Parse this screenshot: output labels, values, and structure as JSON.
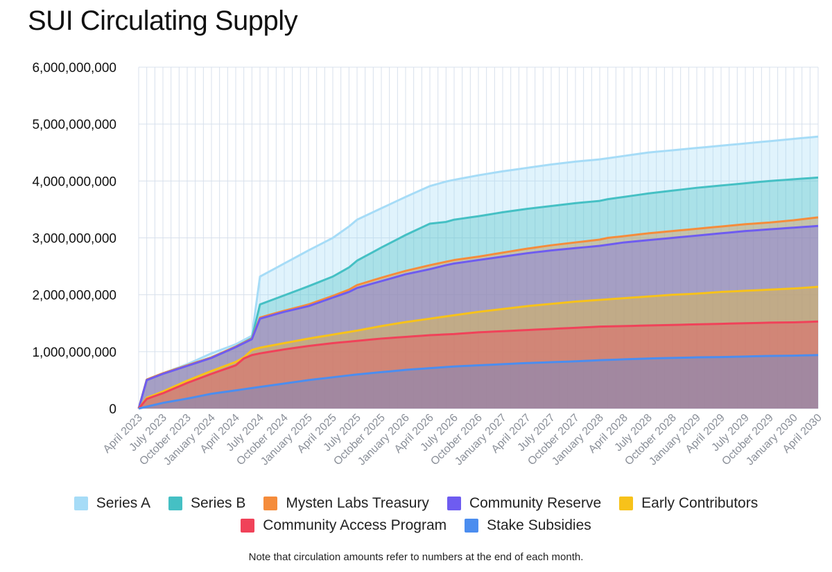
{
  "title": "SUI Circulating Supply",
  "note": "Note that circulation amounts refer to numbers at the end of each month.",
  "colors": {
    "Series A": "#a6dcf7",
    "Series B": "#45c0c4",
    "Mysten Labs Treasury": "#f58c3b",
    "Community Reserve": "#6e5cf0",
    "Early Contributors": "#f7c21a",
    "Community Access Program": "#f04259",
    "Stake Subsidies": "#4b8def"
  },
  "legend_rows": [
    [
      "Series A",
      "Series B",
      "Mysten Labs Treasury",
      "Community Reserve",
      "Early Contributors"
    ],
    [
      "Community Access Program",
      "Stake Subsidies"
    ]
  ],
  "chart_data": {
    "type": "area",
    "stacked": true,
    "title": "SUI Circulating Supply",
    "ylim": [
      0,
      6000000000
    ],
    "yticks": [
      0,
      1000000000,
      2000000000,
      3000000000,
      4000000000,
      5000000000,
      6000000000
    ],
    "ytick_labels": [
      "0",
      "1,000,000,000",
      "2,000,000,000",
      "3,000,000,000",
      "4,000,000,000",
      "5,000,000,000",
      "6,000,000,000"
    ],
    "grid": true,
    "legend_position": "bottom",
    "x_months": [
      "2023-04",
      "2023-05",
      "2023-06",
      "2023-07",
      "2023-08",
      "2023-09",
      "2023-10",
      "2023-11",
      "2023-12",
      "2024-01",
      "2024-02",
      "2024-03",
      "2024-04",
      "2024-05",
      "2024-06",
      "2024-07",
      "2024-08",
      "2024-09",
      "2024-10",
      "2024-11",
      "2024-12",
      "2025-01",
      "2025-02",
      "2025-03",
      "2025-04",
      "2025-05",
      "2025-06",
      "2025-07",
      "2025-08",
      "2025-09",
      "2025-10",
      "2025-11",
      "2025-12",
      "2026-01",
      "2026-02",
      "2026-03",
      "2026-04",
      "2026-05",
      "2026-06",
      "2026-07",
      "2026-08",
      "2026-09",
      "2026-10",
      "2026-11",
      "2026-12",
      "2027-01",
      "2027-02",
      "2027-03",
      "2027-04",
      "2027-05",
      "2027-06",
      "2027-07",
      "2027-08",
      "2027-09",
      "2027-10",
      "2027-11",
      "2027-12",
      "2028-01",
      "2028-02",
      "2028-03",
      "2028-04",
      "2028-05",
      "2028-06",
      "2028-07",
      "2028-08",
      "2028-09",
      "2028-10",
      "2028-11",
      "2028-12",
      "2029-01",
      "2029-02",
      "2029-03",
      "2029-04",
      "2029-05",
      "2029-06",
      "2029-07",
      "2029-08",
      "2029-09",
      "2029-10",
      "2029-11",
      "2029-12",
      "2030-01",
      "2030-02",
      "2030-03",
      "2030-04"
    ],
    "x_tick_labels": [
      "April 2023",
      "July 2023",
      "October 2023",
      "January 2024",
      "April 2024",
      "July 2024",
      "October 2024",
      "January 2025",
      "April 2025",
      "July 2025",
      "October 2025",
      "January 2026",
      "April 2026",
      "July 2026",
      "October 2026",
      "January 2027",
      "April 2027",
      "July 2027",
      "October 2027",
      "January 2028",
      "April 2028",
      "July 2028",
      "October 2028",
      "January 2029",
      "April 2029",
      "July 2029",
      "October 2029",
      "January 2030",
      "April 2030"
    ],
    "cumulative_anchors": {
      "Stake Subsidies": [
        [
          0,
          0
        ],
        [
          3,
          100000000
        ],
        [
          6,
          175000000
        ],
        [
          9,
          260000000
        ],
        [
          12,
          320000000
        ],
        [
          15,
          380000000
        ],
        [
          18,
          440000000
        ],
        [
          21,
          500000000
        ],
        [
          24,
          550000000
        ],
        [
          27,
          600000000
        ],
        [
          30,
          640000000
        ],
        [
          33,
          680000000
        ],
        [
          36,
          710000000
        ],
        [
          39,
          740000000
        ],
        [
          42,
          760000000
        ],
        [
          45,
          780000000
        ],
        [
          48,
          800000000
        ],
        [
          51,
          815000000
        ],
        [
          54,
          830000000
        ],
        [
          57,
          850000000
        ],
        [
          60,
          865000000
        ],
        [
          63,
          880000000
        ],
        [
          66,
          890000000
        ],
        [
          69,
          900000000
        ],
        [
          72,
          905000000
        ],
        [
          75,
          915000000
        ],
        [
          78,
          925000000
        ],
        [
          81,
          930000000
        ],
        [
          84,
          940000000
        ]
      ],
      "Community Access Program": [
        [
          0,
          0
        ],
        [
          1,
          170000000
        ],
        [
          3,
          270000000
        ],
        [
          6,
          450000000
        ],
        [
          9,
          610000000
        ],
        [
          12,
          760000000
        ],
        [
          13,
          880000000
        ],
        [
          14,
          940000000
        ],
        [
          15,
          970000000
        ],
        [
          18,
          1040000000
        ],
        [
          21,
          1100000000
        ],
        [
          24,
          1150000000
        ],
        [
          27,
          1190000000
        ],
        [
          30,
          1230000000
        ],
        [
          33,
          1260000000
        ],
        [
          36,
          1290000000
        ],
        [
          39,
          1310000000
        ],
        [
          42,
          1340000000
        ],
        [
          45,
          1360000000
        ],
        [
          48,
          1380000000
        ],
        [
          51,
          1400000000
        ],
        [
          54,
          1420000000
        ],
        [
          57,
          1440000000
        ],
        [
          60,
          1450000000
        ],
        [
          63,
          1460000000
        ],
        [
          66,
          1470000000
        ],
        [
          69,
          1480000000
        ],
        [
          72,
          1490000000
        ],
        [
          75,
          1500000000
        ],
        [
          78,
          1510000000
        ],
        [
          81,
          1515000000
        ],
        [
          84,
          1530000000
        ]
      ],
      "Early Contributors": [
        [
          0,
          0
        ],
        [
          1,
          190000000
        ],
        [
          3,
          300000000
        ],
        [
          6,
          490000000
        ],
        [
          9,
          660000000
        ],
        [
          12,
          820000000
        ],
        [
          13,
          900000000
        ],
        [
          14,
          1030000000
        ],
        [
          15,
          1070000000
        ],
        [
          18,
          1150000000
        ],
        [
          21,
          1230000000
        ],
        [
          24,
          1300000000
        ],
        [
          27,
          1370000000
        ],
        [
          30,
          1450000000
        ],
        [
          33,
          1520000000
        ],
        [
          36,
          1580000000
        ],
        [
          39,
          1640000000
        ],
        [
          42,
          1700000000
        ],
        [
          45,
          1750000000
        ],
        [
          48,
          1800000000
        ],
        [
          51,
          1840000000
        ],
        [
          54,
          1880000000
        ],
        [
          57,
          1910000000
        ],
        [
          60,
          1940000000
        ],
        [
          63,
          1970000000
        ],
        [
          66,
          2000000000
        ],
        [
          69,
          2020000000
        ],
        [
          72,
          2050000000
        ],
        [
          75,
          2070000000
        ],
        [
          78,
          2090000000
        ],
        [
          81,
          2110000000
        ],
        [
          84,
          2140000000
        ]
      ],
      "Community Reserve": [
        [
          0,
          0
        ],
        [
          1,
          500000000
        ],
        [
          3,
          610000000
        ],
        [
          6,
          750000000
        ],
        [
          9,
          890000000
        ],
        [
          12,
          1080000000
        ],
        [
          14,
          1220000000
        ],
        [
          15,
          1580000000
        ],
        [
          18,
          1700000000
        ],
        [
          21,
          1800000000
        ],
        [
          24,
          1950000000
        ],
        [
          26,
          2050000000
        ],
        [
          27,
          2120000000
        ],
        [
          30,
          2240000000
        ],
        [
          33,
          2360000000
        ],
        [
          36,
          2450000000
        ],
        [
          38,
          2520000000
        ],
        [
          39,
          2550000000
        ],
        [
          42,
          2610000000
        ],
        [
          45,
          2670000000
        ],
        [
          48,
          2730000000
        ],
        [
          51,
          2780000000
        ],
        [
          54,
          2820000000
        ],
        [
          57,
          2860000000
        ],
        [
          58,
          2880000000
        ],
        [
          60,
          2920000000
        ],
        [
          63,
          2960000000
        ],
        [
          66,
          3000000000
        ],
        [
          69,
          3040000000
        ],
        [
          72,
          3080000000
        ],
        [
          75,
          3120000000
        ],
        [
          78,
          3150000000
        ],
        [
          81,
          3180000000
        ],
        [
          84,
          3210000000
        ]
      ],
      "Mysten Labs Treasury": [
        [
          0,
          0
        ],
        [
          1,
          510000000
        ],
        [
          3,
          620000000
        ],
        [
          6,
          760000000
        ],
        [
          9,
          900000000
        ],
        [
          12,
          1090000000
        ],
        [
          14,
          1230000000
        ],
        [
          15,
          1600000000
        ],
        [
          18,
          1720000000
        ],
        [
          21,
          1830000000
        ],
        [
          24,
          1980000000
        ],
        [
          26,
          2090000000
        ],
        [
          27,
          2170000000
        ],
        [
          30,
          2300000000
        ],
        [
          33,
          2420000000
        ],
        [
          36,
          2520000000
        ],
        [
          38,
          2580000000
        ],
        [
          39,
          2610000000
        ],
        [
          42,
          2670000000
        ],
        [
          45,
          2740000000
        ],
        [
          48,
          2810000000
        ],
        [
          51,
          2870000000
        ],
        [
          54,
          2920000000
        ],
        [
          57,
          2970000000
        ],
        [
          58,
          3000000000
        ],
        [
          60,
          3030000000
        ],
        [
          63,
          3080000000
        ],
        [
          66,
          3120000000
        ],
        [
          69,
          3160000000
        ],
        [
          72,
          3200000000
        ],
        [
          75,
          3240000000
        ],
        [
          78,
          3270000000
        ],
        [
          81,
          3310000000
        ],
        [
          84,
          3360000000
        ]
      ],
      "Series B": [
        [
          0,
          0
        ],
        [
          1,
          510000000
        ],
        [
          3,
          620000000
        ],
        [
          6,
          760000000
        ],
        [
          9,
          900000000
        ],
        [
          12,
          1090000000
        ],
        [
          14,
          1240000000
        ],
        [
          15,
          1830000000
        ],
        [
          18,
          1990000000
        ],
        [
          21,
          2150000000
        ],
        [
          24,
          2320000000
        ],
        [
          26,
          2480000000
        ],
        [
          27,
          2600000000
        ],
        [
          30,
          2830000000
        ],
        [
          33,
          3050000000
        ],
        [
          36,
          3250000000
        ],
        [
          38,
          3280000000
        ],
        [
          39,
          3320000000
        ],
        [
          42,
          3380000000
        ],
        [
          45,
          3450000000
        ],
        [
          48,
          3510000000
        ],
        [
          51,
          3560000000
        ],
        [
          54,
          3610000000
        ],
        [
          57,
          3650000000
        ],
        [
          58,
          3680000000
        ],
        [
          60,
          3720000000
        ],
        [
          63,
          3780000000
        ],
        [
          66,
          3830000000
        ],
        [
          69,
          3880000000
        ],
        [
          72,
          3920000000
        ],
        [
          75,
          3960000000
        ],
        [
          78,
          4000000000
        ],
        [
          81,
          4030000000
        ],
        [
          84,
          4060000000
        ]
      ],
      "Series A": [
        [
          0,
          0
        ],
        [
          1,
          510000000
        ],
        [
          3,
          620000000
        ],
        [
          6,
          780000000
        ],
        [
          9,
          970000000
        ],
        [
          12,
          1130000000
        ],
        [
          14,
          1280000000
        ],
        [
          15,
          2320000000
        ],
        [
          18,
          2550000000
        ],
        [
          21,
          2780000000
        ],
        [
          24,
          3000000000
        ],
        [
          26,
          3200000000
        ],
        [
          27,
          3320000000
        ],
        [
          30,
          3520000000
        ],
        [
          33,
          3720000000
        ],
        [
          36,
          3910000000
        ],
        [
          38,
          3990000000
        ],
        [
          39,
          4020000000
        ],
        [
          42,
          4100000000
        ],
        [
          45,
          4170000000
        ],
        [
          48,
          4230000000
        ],
        [
          51,
          4290000000
        ],
        [
          54,
          4340000000
        ],
        [
          57,
          4380000000
        ],
        [
          58,
          4400000000
        ],
        [
          60,
          4440000000
        ],
        [
          63,
          4500000000
        ],
        [
          66,
          4540000000
        ],
        [
          69,
          4580000000
        ],
        [
          72,
          4620000000
        ],
        [
          75,
          4660000000
        ],
        [
          78,
          4700000000
        ],
        [
          81,
          4740000000
        ],
        [
          84,
          4780000000
        ]
      ]
    },
    "series": [
      {
        "name": "Stake Subsidies"
      },
      {
        "name": "Community Access Program"
      },
      {
        "name": "Early Contributors"
      },
      {
        "name": "Community Reserve"
      },
      {
        "name": "Mysten Labs Treasury"
      },
      {
        "name": "Series B"
      },
      {
        "name": "Series A"
      }
    ]
  }
}
